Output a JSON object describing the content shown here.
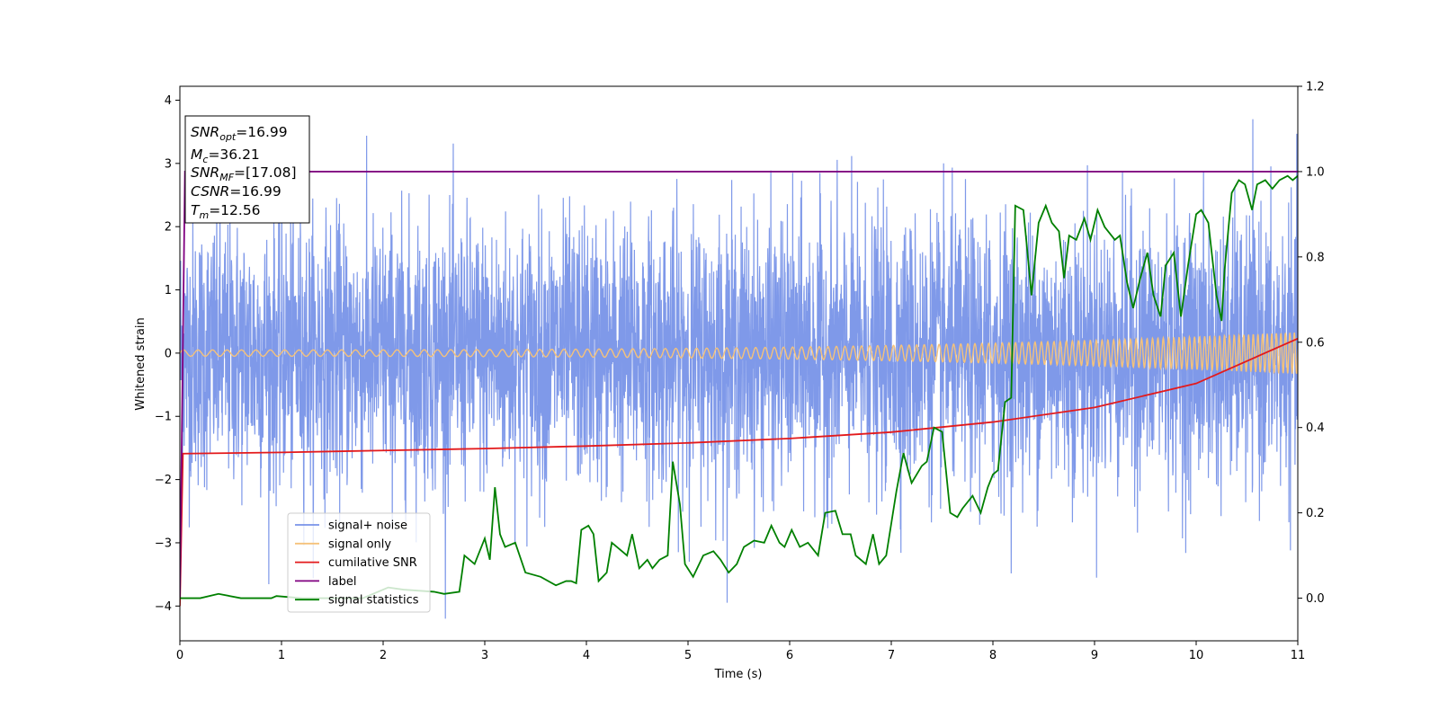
{
  "chart_data": {
    "type": "line",
    "xlabel": "Time (s)",
    "ylabel": "Whitened strain",
    "xlim": [
      0,
      11
    ],
    "ylim": [
      -4.55,
      4.22
    ],
    "y2lim": [
      -0.1,
      1.2
    ],
    "x_ticks": [
      "0",
      "1",
      "2",
      "3",
      "4",
      "5",
      "6",
      "7",
      "8",
      "9",
      "10",
      "11"
    ],
    "y_ticks": [
      "−4",
      "−3",
      "−2",
      "−1",
      "0",
      "1",
      "2",
      "3",
      "4"
    ],
    "y2_ticks": [
      "0.0",
      "0.2",
      "0.4",
      "0.6",
      "0.8",
      "1.0",
      "1.2"
    ],
    "grid": false,
    "legend_position": "lower-left",
    "annotation": [
      {
        "base": "SNR",
        "sub": "opt",
        "text": "=16.99"
      },
      {
        "base": "M",
        "sub": "c",
        "text": "=36.21"
      },
      {
        "base": "SNR",
        "sub": "MF",
        "text": "=[17.08]"
      },
      {
        "base": "CSNR",
        "sub": "",
        "text": "=16.99"
      },
      {
        "base": "T",
        "sub": "m",
        "text": "=12.56"
      }
    ],
    "series": [
      {
        "name": "signal+ noise",
        "color": "#7893e8",
        "axis": "left",
        "kind": "noise",
        "approx_envelope": [
          -2.5,
          2.5
        ],
        "approx_peak_range": [
          -4.2,
          3.7
        ]
      },
      {
        "name": "signal only",
        "color": "#f5c27a",
        "axis": "left",
        "kind": "chirp",
        "start_amplitude": 0.05,
        "end_amplitude": 0.33,
        "start_frequency_hz": 7,
        "end_frequency_hz": 23
      },
      {
        "name": "cumilative SNR",
        "color": "#e31a1c",
        "axis": "left",
        "points": [
          [
            0,
            -4.0
          ],
          [
            0.03,
            -1.59
          ],
          [
            1,
            -1.57
          ],
          [
            2,
            -1.54
          ],
          [
            3,
            -1.51
          ],
          [
            4,
            -1.47
          ],
          [
            5,
            -1.42
          ],
          [
            6,
            -1.35
          ],
          [
            7,
            -1.25
          ],
          [
            8,
            -1.09
          ],
          [
            9,
            -0.86
          ],
          [
            10,
            -0.48
          ],
          [
            11,
            0.23
          ]
        ]
      },
      {
        "name": "label",
        "color": "#800080",
        "axis": "right",
        "points": [
          [
            0,
            0.0
          ],
          [
            0.05,
            1.0
          ],
          [
            11,
            1.0
          ]
        ]
      },
      {
        "name": "signal statistics",
        "color": "#008000",
        "axis": "right",
        "points": [
          [
            0,
            0.0
          ],
          [
            0.2,
            0.0
          ],
          [
            0.38,
            0.01
          ],
          [
            0.6,
            0.0
          ],
          [
            0.9,
            0.0
          ],
          [
            0.95,
            0.005
          ],
          [
            1.2,
            0.0
          ],
          [
            1.5,
            0.0
          ],
          [
            1.8,
            0.0
          ],
          [
            2.05,
            0.025
          ],
          [
            2.2,
            0.02
          ],
          [
            2.5,
            0.015
          ],
          [
            2.6,
            0.01
          ],
          [
            2.75,
            0.015
          ],
          [
            2.8,
            0.1
          ],
          [
            2.9,
            0.08
          ],
          [
            3.0,
            0.14
          ],
          [
            3.05,
            0.09
          ],
          [
            3.1,
            0.26
          ],
          [
            3.15,
            0.15
          ],
          [
            3.2,
            0.12
          ],
          [
            3.3,
            0.13
          ],
          [
            3.4,
            0.06
          ],
          [
            3.55,
            0.05
          ],
          [
            3.7,
            0.03
          ],
          [
            3.8,
            0.04
          ],
          [
            3.85,
            0.04
          ],
          [
            3.9,
            0.035
          ],
          [
            3.95,
            0.16
          ],
          [
            4.02,
            0.17
          ],
          [
            4.07,
            0.15
          ],
          [
            4.12,
            0.04
          ],
          [
            4.2,
            0.06
          ],
          [
            4.25,
            0.13
          ],
          [
            4.35,
            0.11
          ],
          [
            4.4,
            0.1
          ],
          [
            4.45,
            0.15
          ],
          [
            4.52,
            0.07
          ],
          [
            4.6,
            0.09
          ],
          [
            4.65,
            0.07
          ],
          [
            4.72,
            0.09
          ],
          [
            4.8,
            0.1
          ],
          [
            4.85,
            0.32
          ],
          [
            4.92,
            0.22
          ],
          [
            4.97,
            0.08
          ],
          [
            5.05,
            0.05
          ],
          [
            5.15,
            0.1
          ],
          [
            5.25,
            0.11
          ],
          [
            5.32,
            0.09
          ],
          [
            5.4,
            0.06
          ],
          [
            5.48,
            0.08
          ],
          [
            5.55,
            0.12
          ],
          [
            5.65,
            0.135
          ],
          [
            5.75,
            0.13
          ],
          [
            5.82,
            0.17
          ],
          [
            5.9,
            0.13
          ],
          [
            5.95,
            0.12
          ],
          [
            6.02,
            0.16
          ],
          [
            6.1,
            0.12
          ],
          [
            6.18,
            0.13
          ],
          [
            6.28,
            0.1
          ],
          [
            6.35,
            0.2
          ],
          [
            6.45,
            0.205
          ],
          [
            6.52,
            0.15
          ],
          [
            6.6,
            0.15
          ],
          [
            6.65,
            0.1
          ],
          [
            6.75,
            0.08
          ],
          [
            6.82,
            0.15
          ],
          [
            6.88,
            0.08
          ],
          [
            6.95,
            0.1
          ],
          [
            7.05,
            0.25
          ],
          [
            7.12,
            0.34
          ],
          [
            7.2,
            0.27
          ],
          [
            7.3,
            0.31
          ],
          [
            7.35,
            0.32
          ],
          [
            7.42,
            0.4
          ],
          [
            7.5,
            0.39
          ],
          [
            7.58,
            0.2
          ],
          [
            7.65,
            0.19
          ],
          [
            7.7,
            0.21
          ],
          [
            7.8,
            0.24
          ],
          [
            7.88,
            0.2
          ],
          [
            7.95,
            0.26
          ],
          [
            8.0,
            0.29
          ],
          [
            8.05,
            0.3
          ],
          [
            8.12,
            0.46
          ],
          [
            8.18,
            0.47
          ],
          [
            8.22,
            0.92
          ],
          [
            8.3,
            0.91
          ],
          [
            8.38,
            0.71
          ],
          [
            8.45,
            0.88
          ],
          [
            8.52,
            0.92
          ],
          [
            8.58,
            0.88
          ],
          [
            8.65,
            0.86
          ],
          [
            8.7,
            0.75
          ],
          [
            8.75,
            0.85
          ],
          [
            8.82,
            0.84
          ],
          [
            8.9,
            0.89
          ],
          [
            8.96,
            0.84
          ],
          [
            9.03,
            0.91
          ],
          [
            9.1,
            0.87
          ],
          [
            9.2,
            0.84
          ],
          [
            9.25,
            0.85
          ],
          [
            9.32,
            0.74
          ],
          [
            9.38,
            0.68
          ],
          [
            9.45,
            0.75
          ],
          [
            9.52,
            0.81
          ],
          [
            9.58,
            0.71
          ],
          [
            9.65,
            0.66
          ],
          [
            9.7,
            0.78
          ],
          [
            9.78,
            0.81
          ],
          [
            9.85,
            0.66
          ],
          [
            9.92,
            0.78
          ],
          [
            10.0,
            0.9
          ],
          [
            10.05,
            0.91
          ],
          [
            10.12,
            0.88
          ],
          [
            10.2,
            0.71
          ],
          [
            10.25,
            0.65
          ],
          [
            10.28,
            0.77
          ],
          [
            10.35,
            0.95
          ],
          [
            10.42,
            0.98
          ],
          [
            10.48,
            0.97
          ],
          [
            10.55,
            0.91
          ],
          [
            10.6,
            0.97
          ],
          [
            10.68,
            0.98
          ],
          [
            10.75,
            0.96
          ],
          [
            10.82,
            0.98
          ],
          [
            10.9,
            0.99
          ],
          [
            10.95,
            0.98
          ],
          [
            11.0,
            0.99
          ]
        ]
      }
    ]
  }
}
